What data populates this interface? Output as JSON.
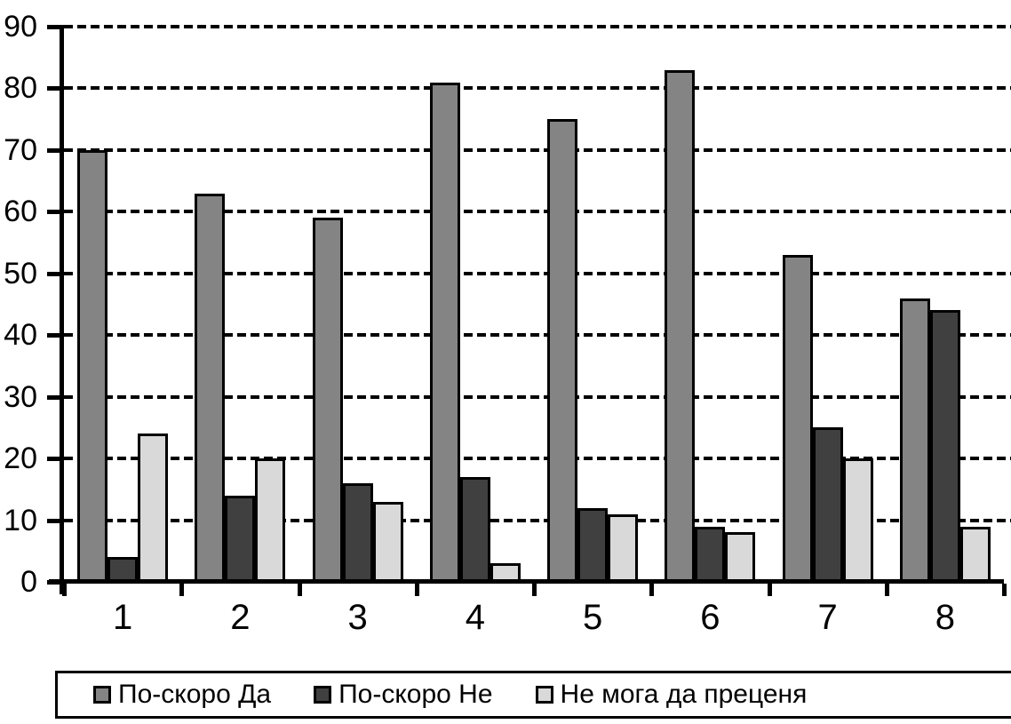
{
  "chart_data": {
    "type": "bar",
    "title": "",
    "xlabel": "",
    "ylabel": "",
    "categories": [
      "1",
      "2",
      "3",
      "4",
      "5",
      "6",
      "7",
      "8"
    ],
    "series": [
      {
        "name": "По-скоро Да",
        "color": "#848484",
        "values": [
          70,
          63,
          59,
          81,
          75,
          83,
          53,
          46
        ]
      },
      {
        "name": "По-скоро Не",
        "color": "#404040",
        "values": [
          4,
          14,
          16,
          17,
          12,
          9,
          25,
          44
        ]
      },
      {
        "name": "Не мога да преценя",
        "color": "#d9d9d9",
        "values": [
          24,
          20,
          13,
          3,
          11,
          8,
          20,
          9
        ]
      }
    ],
    "ylim": [
      0,
      90
    ],
    "yticks": [
      0,
      10,
      20,
      30,
      40,
      50,
      60,
      70,
      80,
      90
    ],
    "grid": "horizontal-dashed",
    "gridline_color": "#000000",
    "axis_color": "#000000",
    "bar_outline_color": "#000000",
    "legend_position": "bottom",
    "legend_border_color": "#000000",
    "background_color": "#ffffff"
  }
}
